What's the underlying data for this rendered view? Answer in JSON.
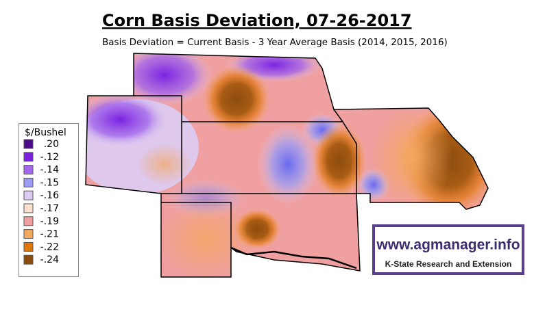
{
  "header": {
    "title": "Corn Basis Deviation, 07-26-2017",
    "subtitle": "Basis Deviation = Current Basis - 3 Year Average Basis (2014, 2015, 2016)"
  },
  "legend": {
    "title": "$/Bushel",
    "items": [
      {
        "label": ".20",
        "color": "#4b0a8c"
      },
      {
        "label": "-.12",
        "color": "#7a22e0"
      },
      {
        "label": "-.14",
        "color": "#a468ec"
      },
      {
        "label": "-.15",
        "color": "#9c9cf4"
      },
      {
        "label": "-.16",
        "color": "#dcccf4"
      },
      {
        "label": "-.17",
        "color": "#fce0d0"
      },
      {
        "label": "-.19",
        "color": "#f0a0a0"
      },
      {
        "label": "-.21",
        "color": "#f4a860"
      },
      {
        "label": "-.22",
        "color": "#e07810"
      },
      {
        "label": "-.24",
        "color": "#8c4c10"
      }
    ]
  },
  "logo": {
    "url": "www.agmanager.info",
    "org": "K-State Research and Extension"
  }
}
